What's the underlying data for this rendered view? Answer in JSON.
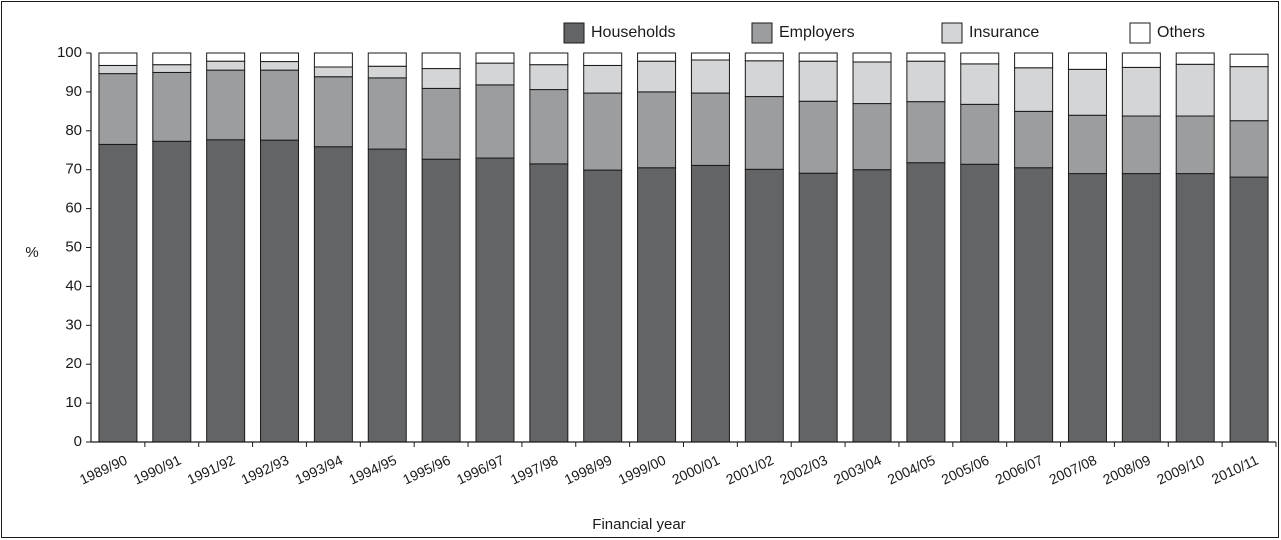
{
  "chart_data": {
    "type": "bar",
    "stacked": true,
    "title": "",
    "xlabel": "Financial year",
    "ylabel": "%",
    "ylim": [
      0,
      100
    ],
    "yticks": [
      0,
      10,
      20,
      30,
      40,
      50,
      60,
      70,
      80,
      90,
      100
    ],
    "grid": false,
    "legend_position": "top-right",
    "categories": [
      "1989/90",
      "1990/91",
      "1991/92",
      "1992/93",
      "1993/94",
      "1994/95",
      "1995/96",
      "1996/97",
      "1997/98",
      "1998/99",
      "1999/00",
      "2000/01",
      "2001/02",
      "2002/03",
      "2003/04",
      "2004/05",
      "2005/06",
      "2006/07",
      "2007/08",
      "2008/09",
      "2009/10",
      "2010/11"
    ],
    "series": [
      {
        "name": "Households",
        "color": "#636466",
        "values": [
          76.5,
          77.3,
          77.7,
          77.6,
          75.9,
          75.3,
          72.7,
          73.0,
          71.5,
          69.9,
          70.5,
          71.1,
          70.1,
          69.1,
          70.0,
          71.8,
          71.4,
          70.5,
          69.0,
          69.0,
          69.0,
          68.1
        ]
      },
      {
        "name": "Employers",
        "color": "#9c9d9f",
        "values": [
          18.2,
          17.7,
          17.9,
          18.0,
          18.0,
          18.3,
          18.2,
          18.8,
          19.1,
          19.8,
          19.5,
          18.6,
          18.7,
          18.5,
          17.0,
          15.7,
          15.4,
          14.5,
          15.0,
          14.8,
          14.8,
          14.5
        ]
      },
      {
        "name": "Insurance",
        "color": "#d4d5d6",
        "values": [
          2.1,
          2.0,
          2.3,
          2.2,
          2.5,
          3.0,
          5.1,
          5.6,
          6.4,
          7.1,
          7.9,
          8.5,
          9.2,
          10.3,
          10.7,
          10.4,
          10.4,
          11.2,
          11.8,
          12.5,
          13.3,
          13.9
        ]
      },
      {
        "name": "Others",
        "color": "#ffffff",
        "values": [
          3.2,
          3.0,
          2.1,
          2.2,
          3.6,
          3.4,
          4.0,
          2.6,
          3.0,
          3.2,
          2.1,
          1.8,
          2.0,
          2.1,
          2.3,
          2.1,
          2.8,
          3.8,
          4.2,
          3.7,
          2.9,
          3.2
        ]
      }
    ]
  }
}
